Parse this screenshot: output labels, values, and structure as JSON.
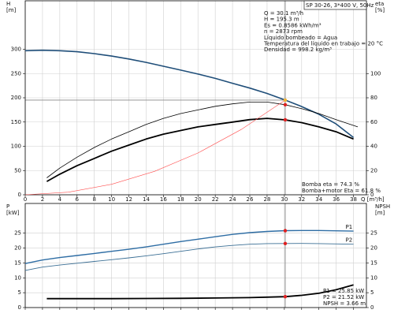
{
  "chart_data": [
    {
      "type": "line",
      "ylabel": [
        "H",
        "[m]"
      ],
      "y2label": [
        "eta",
        "[%]"
      ],
      "xlabel": "Q [m³/h]",
      "xlim": [
        0,
        39.5
      ],
      "xticks": [
        0,
        2,
        4,
        6,
        8,
        10,
        12,
        14,
        16,
        18,
        20,
        22,
        24,
        26,
        28,
        30,
        32,
        34,
        36,
        38
      ],
      "xtick_labels": true,
      "ylim": [
        0,
        400
      ],
      "yticks": [
        0,
        50,
        100,
        150,
        200,
        250,
        300
      ],
      "y2lim": [
        0,
        160
      ],
      "y2ticks": [
        0,
        20,
        40,
        60,
        80,
        100
      ],
      "grid": true,
      "series": [
        {
          "color": "#1f4e79",
          "width": 1.6,
          "x": [
            0,
            2,
            4,
            6,
            8,
            10,
            12,
            14,
            16,
            18,
            20,
            22,
            24,
            26,
            28,
            30.1,
            32,
            34,
            36,
            38
          ],
          "values": [
            297,
            298,
            297,
            295,
            291,
            286,
            280,
            273,
            265,
            257,
            249,
            240,
            230,
            220,
            209,
            195.3,
            182,
            166,
            146,
            118
          ]
        },
        {
          "color": "#000000",
          "width": 0.8,
          "axis": "y2",
          "x": [
            2.5,
            4,
            6,
            8,
            10,
            12,
            14,
            16,
            18,
            20,
            22,
            24,
            26,
            28,
            30.1,
            32,
            34,
            36,
            38.5
          ],
          "values": [
            14,
            22,
            31,
            39,
            46,
            52,
            58,
            63,
            67,
            70,
            73,
            75,
            76.5,
            76.5,
            74.3,
            71,
            67,
            62,
            56
          ]
        },
        {
          "color": "#000000",
          "width": 1.8,
          "axis": "y2",
          "x": [
            2.5,
            4,
            6,
            8,
            10,
            12,
            14,
            16,
            18,
            20,
            22,
            24,
            26,
            28,
            30.1,
            32,
            34,
            36,
            38
          ],
          "values": [
            11,
            17,
            24,
            30,
            36,
            41,
            46,
            50,
            53,
            56,
            58,
            60,
            62,
            63,
            61.8,
            59.5,
            56,
            52,
            46
          ]
        },
        {
          "color": "#ff5050",
          "width": 0.6,
          "x": [
            0,
            5,
            10,
            15,
            20,
            25,
            30.1
          ],
          "values": [
            0,
            5.4,
            21.6,
            48.5,
            86.2,
            134.7,
            195.3
          ]
        }
      ],
      "markers": [
        {
          "x": 30.1,
          "y": 195.3,
          "color": "#f0b030"
        },
        {
          "x": 30.1,
          "y": 74.3,
          "axis": "y2",
          "color": "#e02020"
        },
        {
          "x": 30.1,
          "y": 61.8,
          "axis": "y2",
          "color": "#e02020"
        }
      ],
      "model": "SP 30-26, 3*400 V, 50Hz",
      "info": [
        "Q = 30.1 m³/h",
        "H = 195.3 m",
        "Es = 0.8586 kWh/m³",
        "n = 2873 rpm",
        "Líquido bombeado = Agua",
        "Temperatura del líquido en trabajo = 20 °C",
        "Densidad = 998.2 kg/m³"
      ],
      "notes": [
        "Bomba eta = 74.3 %",
        "Bomba+motor Eta = 61.8 %"
      ]
    },
    {
      "type": "line",
      "ylabel": [
        "P",
        "[kW]"
      ],
      "y2label": [
        "NPSH",
        "[m]"
      ],
      "xlim": [
        0,
        39.5
      ],
      "xticks": [
        0,
        2,
        4,
        6,
        8,
        10,
        12,
        14,
        16,
        18,
        20,
        22,
        24,
        26,
        28,
        30,
        32,
        34,
        36,
        38
      ],
      "xtick_labels": false,
      "ylim": [
        0,
        35
      ],
      "yticks": [
        0,
        5,
        10,
        15,
        20,
        25
      ],
      "y2lim": [
        0,
        35
      ],
      "y2ticks": [
        0,
        5,
        10,
        15,
        20,
        25
      ],
      "grid": true,
      "series": [
        {
          "name": "P1",
          "color": "#2e6da4",
          "width": 1.4,
          "x": [
            0,
            2,
            4,
            6,
            8,
            10,
            12,
            14,
            16,
            18,
            20,
            22,
            24,
            26,
            28,
            30.1,
            32,
            34,
            36,
            38
          ],
          "values": [
            14.8,
            16,
            16.8,
            17.5,
            18.2,
            18.9,
            19.6,
            20.4,
            21.3,
            22.2,
            23,
            23.8,
            24.6,
            25.2,
            25.6,
            25.85,
            25.9,
            25.9,
            25.8,
            25.7
          ]
        },
        {
          "name": "P2",
          "color": "#3b6f95",
          "width": 0.9,
          "x": [
            0,
            2,
            4,
            6,
            8,
            10,
            12,
            14,
            16,
            18,
            20,
            22,
            24,
            26,
            28,
            30.1,
            32,
            34,
            36,
            38
          ],
          "values": [
            12.5,
            13.6,
            14.3,
            14.9,
            15.5,
            16.1,
            16.7,
            17.4,
            18.1,
            18.9,
            19.7,
            20.4,
            20.9,
            21.3,
            21.5,
            21.52,
            21.55,
            21.5,
            21.4,
            21.3
          ]
        },
        {
          "color": "#000000",
          "width": 1.8,
          "axis": "y2",
          "x": [
            2.5,
            6,
            10,
            14,
            18,
            22,
            26,
            28,
            30.1,
            32,
            34,
            36,
            38
          ],
          "values": [
            3,
            3,
            3,
            3.05,
            3.1,
            3.2,
            3.35,
            3.5,
            3.66,
            4.1,
            4.8,
            6,
            7.6
          ]
        }
      ],
      "markers": [
        {
          "x": 30.1,
          "y": 25.85,
          "color": "#e02020"
        },
        {
          "x": 30.1,
          "y": 21.52,
          "color": "#e02020"
        },
        {
          "x": 30.1,
          "y": 3.66,
          "axis": "y2",
          "color": "#e02020"
        }
      ],
      "notes": [
        "P1 = 25.85 kW",
        "P2 = 21.52 kW",
        "NPSH = 3.66 m"
      ]
    }
  ]
}
